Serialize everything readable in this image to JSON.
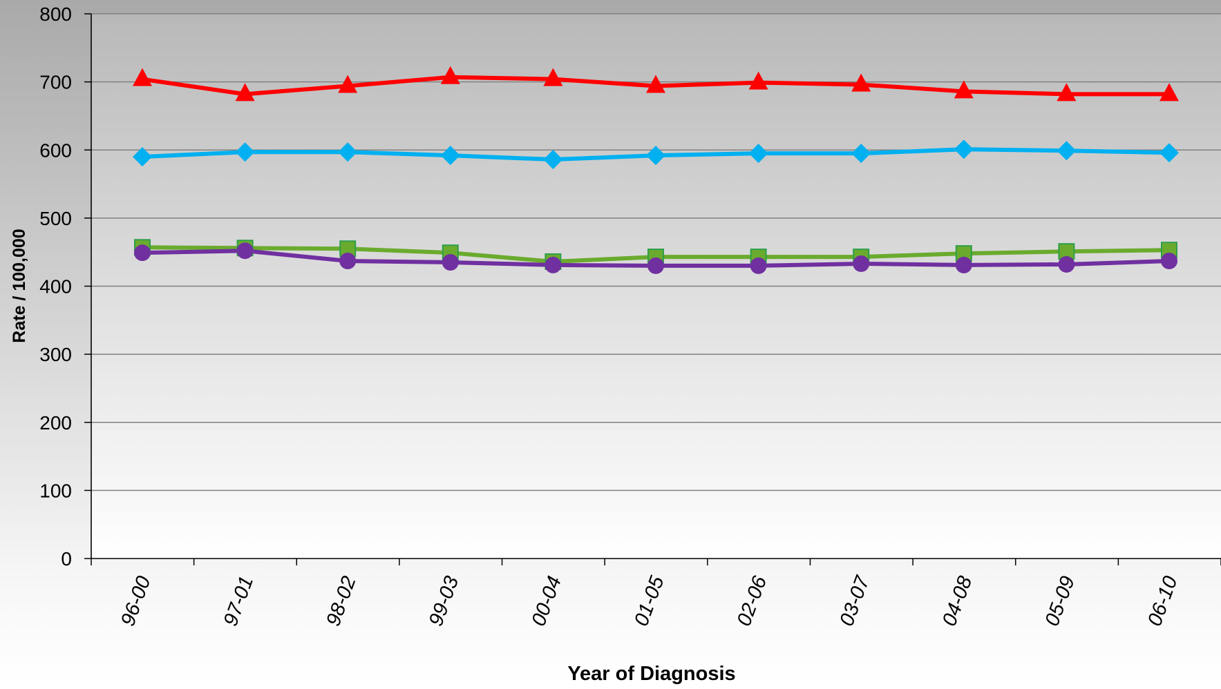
{
  "chart_data": {
    "type": "line",
    "title": "",
    "xlabel": "Year of Diagnosis",
    "ylabel": "Rate / 100,000",
    "ylim": [
      0,
      800
    ],
    "yticks": [
      0,
      100,
      200,
      300,
      400,
      500,
      600,
      700,
      800
    ],
    "grid": true,
    "categories": [
      "96-00",
      "97-01",
      "98-02",
      "99-03",
      "00-04",
      "01-05",
      "02-06",
      "03-07",
      "04-08",
      "05-09",
      "06-10"
    ],
    "series": [
      {
        "marker": "triangle",
        "color": "#ff0000",
        "values": [
          704,
          682,
          694,
          707,
          704,
          694,
          699,
          696,
          686,
          682,
          682
        ]
      },
      {
        "marker": "diamond",
        "color": "#00b0f0",
        "values": [
          590,
          597,
          597,
          592,
          586,
          592,
          595,
          595,
          601,
          599,
          596
        ]
      },
      {
        "marker": "square",
        "color": "#6aab2e",
        "values": [
          457,
          456,
          455,
          449,
          436,
          443,
          443,
          443,
          448,
          451,
          453
        ]
      },
      {
        "marker": "circle",
        "color": "#7030a0",
        "values": [
          449,
          452,
          437,
          435,
          431,
          430,
          430,
          433,
          431,
          432,
          437
        ]
      }
    ]
  }
}
